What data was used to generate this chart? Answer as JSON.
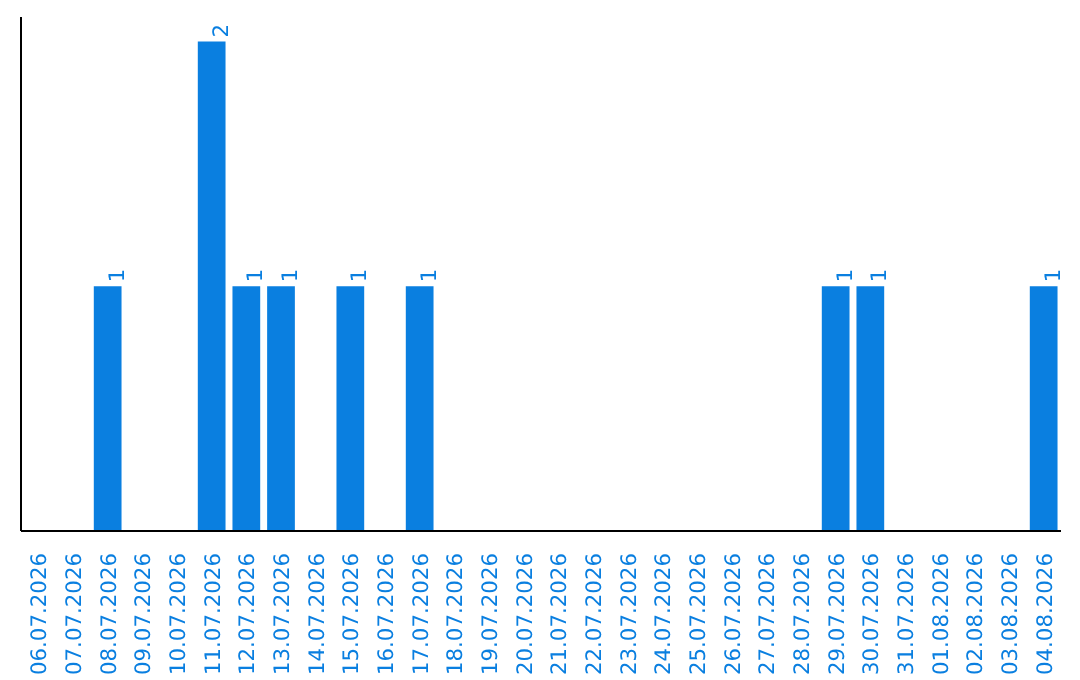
{
  "chart_data": {
    "type": "bar",
    "categories": [
      "06.07.2026",
      "07.07.2026",
      "08.07.2026",
      "09.07.2026",
      "10.07.2026",
      "11.07.2026",
      "12.07.2026",
      "13.07.2026",
      "14.07.2026",
      "15.07.2026",
      "16.07.2026",
      "17.07.2026",
      "18.07.2026",
      "19.07.2026",
      "20.07.2026",
      "21.07.2026",
      "22.07.2026",
      "23.07.2026",
      "24.07.2026",
      "25.07.2026",
      "26.07.2026",
      "27.07.2026",
      "28.07.2026",
      "29.07.2026",
      "30.07.2026",
      "31.07.2026",
      "01.08.2026",
      "02.08.2026",
      "03.08.2026",
      "04.08.2026"
    ],
    "values": [
      0,
      0,
      1,
      0,
      0,
      2,
      1,
      1,
      0,
      1,
      0,
      1,
      0,
      0,
      0,
      0,
      0,
      0,
      0,
      0,
      0,
      0,
      0,
      1,
      1,
      0,
      0,
      0,
      0,
      1
    ],
    "value_labels": [
      null,
      null,
      "1",
      null,
      null,
      "2",
      "1",
      "1",
      null,
      "1",
      null,
      "1",
      null,
      null,
      null,
      null,
      null,
      null,
      null,
      null,
      null,
      null,
      null,
      "1",
      "1",
      null,
      null,
      null,
      null,
      "1"
    ],
    "color": "#0a7fe0",
    "tick_labels": "x",
    "grid": false
  }
}
